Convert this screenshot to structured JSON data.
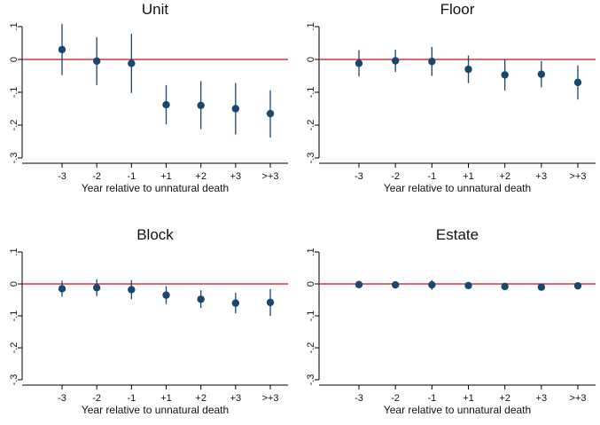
{
  "colors": {
    "marker": "#1a476f",
    "ci": "#1a476f",
    "zero_line": "#c1121f",
    "axis": "#000000"
  },
  "chart_data": [
    {
      "type": "scatter",
      "title": "Unit",
      "xlabel": "Year relative to unnatural death",
      "ylabel": "",
      "categories": [
        "-3",
        "-2",
        "-1",
        "+1",
        "+2",
        "+3",
        ">+3"
      ],
      "values": [
        0.03,
        -0.005,
        -0.012,
        -0.138,
        -0.14,
        -0.15,
        -0.165
      ],
      "ci_low": [
        -0.048,
        -0.078,
        -0.102,
        -0.198,
        -0.212,
        -0.228,
        -0.238
      ],
      "ci_high": [
        0.108,
        0.068,
        0.078,
        -0.078,
        -0.066,
        -0.072,
        -0.094
      ],
      "ylim": [
        -0.3,
        0.1
      ],
      "yticks": [
        ".1",
        "0",
        "-.1",
        "-.2",
        "-.3"
      ],
      "reference_line": 0,
      "grid": false
    },
    {
      "type": "scatter",
      "title": "Floor",
      "xlabel": "Year relative to unnatural death",
      "ylabel": "",
      "categories": [
        "-3",
        "-2",
        "-1",
        "+1",
        "+2",
        "+3",
        ">+3"
      ],
      "values": [
        -0.012,
        -0.004,
        -0.006,
        -0.03,
        -0.047,
        -0.045,
        -0.07
      ],
      "ci_low": [
        -0.052,
        -0.038,
        -0.05,
        -0.072,
        -0.095,
        -0.085,
        -0.122
      ],
      "ci_high": [
        0.028,
        0.03,
        0.038,
        0.012,
        0.0,
        -0.005,
        -0.018
      ],
      "ylim": [
        -0.3,
        0.1
      ],
      "yticks": [
        ".1",
        "0",
        "-.1",
        "-.2",
        "-.3"
      ],
      "reference_line": 0,
      "grid": false
    },
    {
      "type": "scatter",
      "title": "Block",
      "xlabel": "Year relative to unnatural death",
      "ylabel": "",
      "categories": [
        "-3",
        "-2",
        "-1",
        "+1",
        "+2",
        "+3",
        ">+3"
      ],
      "values": [
        -0.015,
        -0.012,
        -0.018,
        -0.035,
        -0.048,
        -0.06,
        -0.058
      ],
      "ci_low": [
        -0.04,
        -0.038,
        -0.048,
        -0.063,
        -0.075,
        -0.092,
        -0.1
      ],
      "ci_high": [
        0.01,
        0.014,
        0.012,
        -0.007,
        -0.02,
        -0.028,
        -0.016
      ],
      "ylim": [
        -0.3,
        0.1
      ],
      "yticks": [
        ".1",
        "0",
        "-.1",
        "-.2",
        "-.3"
      ],
      "reference_line": 0,
      "grid": false
    },
    {
      "type": "scatter",
      "title": "Estate",
      "xlabel": "Year relative to unnatural death",
      "ylabel": "",
      "categories": [
        "-3",
        "-2",
        "-1",
        "+1",
        "+2",
        "+3",
        ">+3"
      ],
      "values": [
        -0.002,
        -0.003,
        -0.003,
        -0.005,
        -0.008,
        -0.01,
        -0.006
      ],
      "ci_low": [
        -0.008,
        -0.01,
        -0.018,
        -0.012,
        -0.014,
        -0.016,
        -0.012
      ],
      "ci_high": [
        0.004,
        0.004,
        0.012,
        0.002,
        -0.002,
        -0.004,
        0.0
      ],
      "ylim": [
        -0.3,
        0.1
      ],
      "yticks": [
        ".1",
        "0",
        "-.1",
        "-.2",
        "-.3"
      ],
      "reference_line": 0,
      "grid": false
    }
  ]
}
